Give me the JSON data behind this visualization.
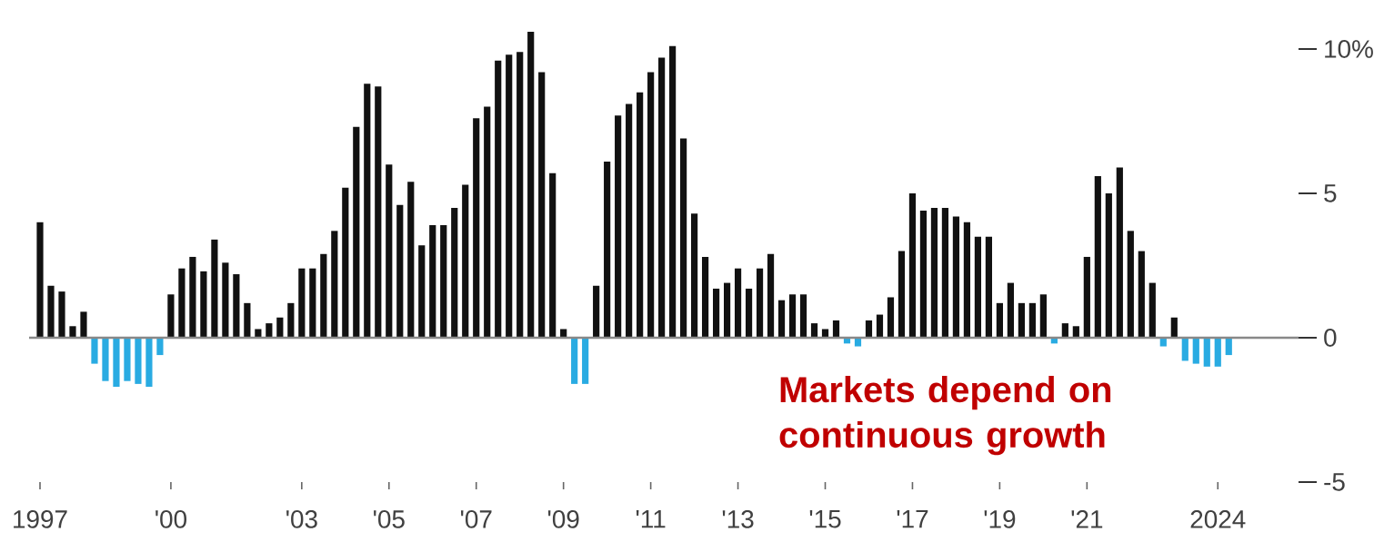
{
  "chart_data": {
    "type": "bar",
    "categories": [
      "1997",
      null,
      null,
      null,
      null,
      null,
      null,
      null,
      null,
      null,
      null,
      null,
      "'00",
      null,
      null,
      null,
      null,
      null,
      null,
      null,
      null,
      null,
      null,
      null,
      "'03",
      null,
      null,
      null,
      null,
      null,
      null,
      null,
      "'05",
      null,
      null,
      null,
      null,
      null,
      null,
      null,
      "'07",
      null,
      null,
      null,
      null,
      null,
      null,
      null,
      "'09",
      null,
      null,
      null,
      null,
      null,
      null,
      null,
      "'11",
      null,
      null,
      null,
      null,
      null,
      null,
      null,
      "'13",
      null,
      null,
      null,
      null,
      null,
      null,
      null,
      "'15",
      null,
      null,
      null,
      null,
      null,
      null,
      null,
      "'17",
      null,
      null,
      null,
      null,
      null,
      null,
      null,
      "'19",
      null,
      null,
      null,
      null,
      null,
      null,
      null,
      "'21",
      null,
      null,
      null,
      null,
      null,
      null,
      null,
      null,
      null,
      null,
      null,
      "2024",
      null
    ],
    "values": [
      4.0,
      1.8,
      1.6,
      0.4,
      0.9,
      -0.9,
      -1.5,
      -1.7,
      -1.5,
      -1.6,
      -1.7,
      -0.6,
      1.5,
      2.4,
      2.8,
      2.3,
      3.4,
      2.6,
      2.2,
      1.2,
      0.3,
      0.5,
      0.7,
      1.2,
      2.4,
      2.4,
      2.9,
      3.7,
      5.2,
      7.3,
      8.8,
      8.7,
      6.0,
      4.6,
      5.4,
      3.2,
      3.9,
      3.9,
      4.5,
      5.3,
      7.6,
      8.0,
      9.6,
      9.8,
      9.9,
      10.6,
      9.2,
      5.7,
      0.3,
      -1.6,
      -1.6,
      1.8,
      6.1,
      7.7,
      8.1,
      8.5,
      9.2,
      9.7,
      10.1,
      6.9,
      4.3,
      2.8,
      1.7,
      1.9,
      2.4,
      1.7,
      2.4,
      2.9,
      1.3,
      1.5,
      1.5,
      0.5,
      0.3,
      0.6,
      -0.2,
      -0.3,
      0.6,
      0.8,
      1.4,
      3.0,
      5.0,
      4.4,
      4.5,
      4.5,
      4.2,
      4.0,
      3.5,
      3.5,
      1.2,
      1.9,
      1.2,
      1.2,
      1.5,
      -0.2,
      0.5,
      0.4,
      2.8,
      5.6,
      5.0,
      5.9,
      3.7,
      3.0,
      1.9,
      -0.3,
      0.7,
      -0.8,
      -0.9,
      -1.0,
      -1.0,
      -0.6
    ],
    "colors": [
      "#111111",
      "#111111",
      "#111111",
      "#111111",
      "#111111",
      "#29abe2",
      "#29abe2",
      "#29abe2",
      "#29abe2",
      "#29abe2",
      "#29abe2",
      "#29abe2",
      "#111111",
      "#111111",
      "#111111",
      "#111111",
      "#111111",
      "#111111",
      "#111111",
      "#111111",
      "#111111",
      "#111111",
      "#111111",
      "#111111",
      "#111111",
      "#111111",
      "#111111",
      "#111111",
      "#111111",
      "#111111",
      "#111111",
      "#111111",
      "#111111",
      "#111111",
      "#111111",
      "#111111",
      "#111111",
      "#111111",
      "#111111",
      "#111111",
      "#111111",
      "#111111",
      "#111111",
      "#111111",
      "#111111",
      "#111111",
      "#111111",
      "#111111",
      "#111111",
      "#29abe2",
      "#29abe2",
      "#111111",
      "#111111",
      "#111111",
      "#111111",
      "#111111",
      "#111111",
      "#111111",
      "#111111",
      "#111111",
      "#111111",
      "#111111",
      "#111111",
      "#111111",
      "#111111",
      "#111111",
      "#111111",
      "#111111",
      "#111111",
      "#111111",
      "#111111",
      "#111111",
      "#111111",
      "#111111",
      "#29abe2",
      "#29abe2",
      "#111111",
      "#111111",
      "#111111",
      "#111111",
      "#111111",
      "#111111",
      "#111111",
      "#111111",
      "#111111",
      "#111111",
      "#111111",
      "#111111",
      "#111111",
      "#111111",
      "#111111",
      "#111111",
      "#111111",
      "#29abe2",
      "#111111",
      "#111111",
      "#111111",
      "#111111",
      "#111111",
      "#111111",
      "#111111",
      "#111111",
      "#111111",
      "#29abe2",
      "#111111",
      "#29abe2",
      "#29abe2",
      "#29abe2",
      "#29abe2",
      "#29abe2"
    ],
    "ylim": [
      -5,
      10.7
    ],
    "yticks": [
      {
        "value": 10,
        "label": "10%"
      },
      5,
      0,
      -5
    ],
    "ref_lines": [
      {
        "axis": "y",
        "value": 0,
        "color": "#888888"
      }
    ],
    "annotations": [
      "Markets depend on continuous growth"
    ]
  }
}
